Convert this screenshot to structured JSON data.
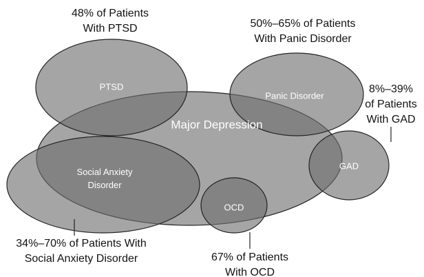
{
  "nodes": [
    {
      "label": [
        "Major Depression"
      ]
    },
    {
      "label": [
        "PTSD"
      ]
    },
    {
      "label": [
        "Panic Disorder"
      ]
    },
    {
      "label": [
        "Social Anxiety",
        "Disorder"
      ]
    },
    {
      "label": [
        "GAD"
      ]
    },
    {
      "label": [
        "OCD"
      ]
    }
  ],
  "annotations": [
    {
      "lines": [
        "48% of Patients",
        "With PTSD"
      ]
    },
    {
      "lines": [
        "50%–65% of Patients",
        "With Panic Disorder"
      ]
    },
    {
      "lines": [
        "8%–39%",
        "of Patients",
        "With GAD"
      ]
    },
    {
      "lines": [
        "34%–70% of Patients With",
        "Social Anxiety Disorder"
      ]
    },
    {
      "lines": [
        "67% of Patients",
        "With OCD"
      ]
    }
  ]
}
